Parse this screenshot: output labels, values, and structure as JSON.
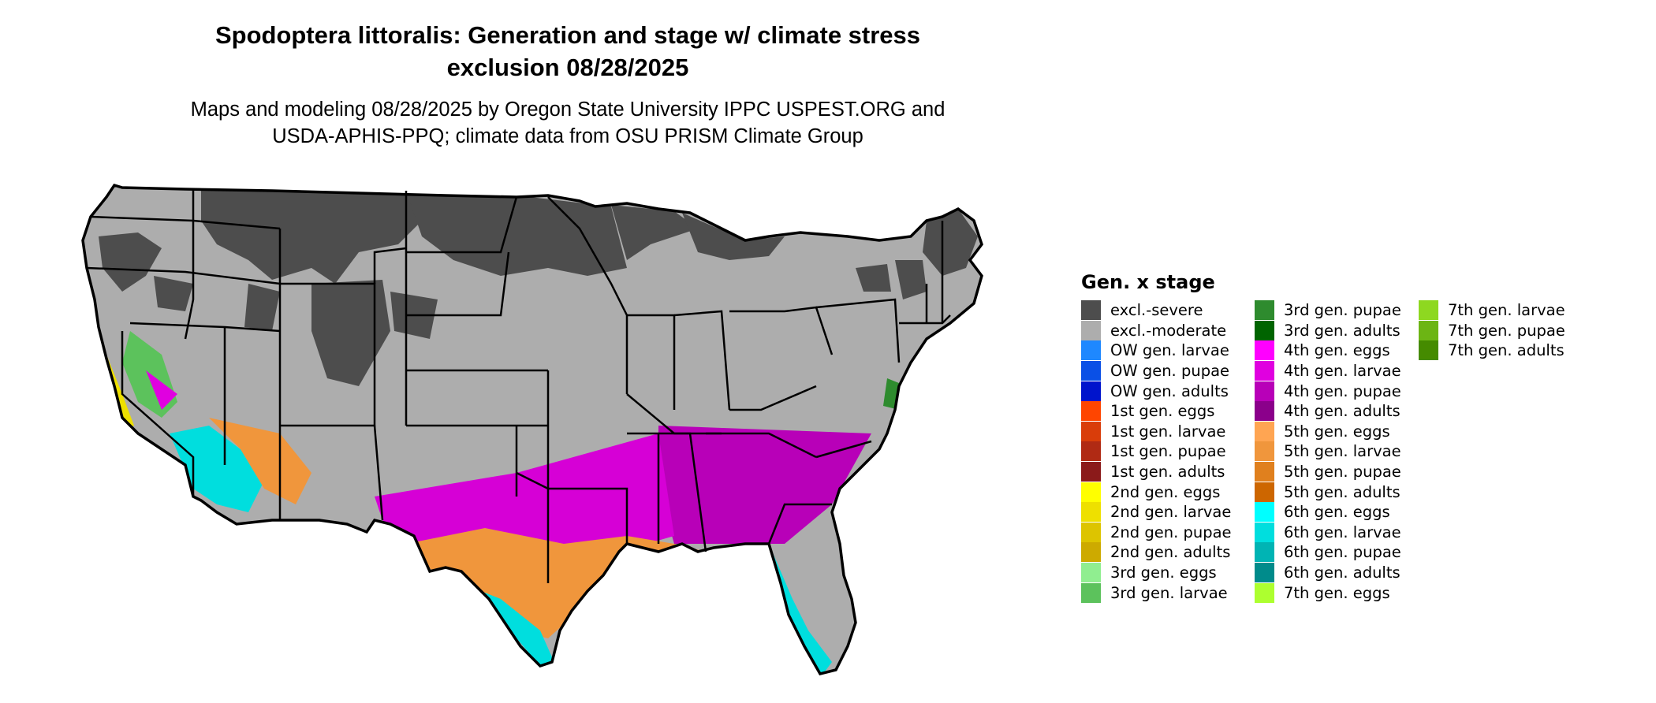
{
  "header": {
    "title_line1": "Spodoptera littoralis: Generation and stage w/ climate stress",
    "title_line2": "exclusion 08/28/2025",
    "subtitle_line1": "Maps and modeling 08/28/2025 by Oregon State University IPPC USPEST.ORG and",
    "subtitle_line2": "USDA-APHIS-PPQ; climate data from OSU PRISM Climate Group"
  },
  "legend": {
    "title": "Gen. x stage",
    "columns": [
      [
        {
          "label": "excl.-severe",
          "color": "#4d4d4d"
        },
        {
          "label": "excl.-moderate",
          "color": "#adadad"
        },
        {
          "label": "OW gen. larvae",
          "color": "#1e88ff"
        },
        {
          "label": "OW gen. pupae",
          "color": "#0a50e6"
        },
        {
          "label": "OW gen. adults",
          "color": "#0014cc"
        },
        {
          "label": "1st gen. eggs",
          "color": "#ff4500"
        },
        {
          "label": "1st gen. larvae",
          "color": "#d93d0a"
        },
        {
          "label": "1st gen. pupae",
          "color": "#b02a14"
        },
        {
          "label": "1st gen. adults",
          "color": "#8b1a1a"
        },
        {
          "label": "2nd gen. eggs",
          "color": "#ffff00"
        },
        {
          "label": "2nd gen. larvae",
          "color": "#eee000"
        },
        {
          "label": "2nd gen. pupae",
          "color": "#ddc400"
        },
        {
          "label": "2nd gen. adults",
          "color": "#cdaa00"
        },
        {
          "label": "3rd gen. eggs",
          "color": "#90ee90"
        },
        {
          "label": "3rd gen. larvae",
          "color": "#5cc25c"
        }
      ],
      [
        {
          "label": "3rd gen. pupae",
          "color": "#2e8b2e"
        },
        {
          "label": "3rd gen. adults",
          "color": "#006400"
        },
        {
          "label": "4th gen. eggs",
          "color": "#ff00ff"
        },
        {
          "label": "4th gen. larvae",
          "color": "#e000e0"
        },
        {
          "label": "4th gen. pupae",
          "color": "#b800b8"
        },
        {
          "label": "4th gen. adults",
          "color": "#8b008b"
        },
        {
          "label": "5th gen. eggs",
          "color": "#ffa552"
        },
        {
          "label": "5th gen. larvae",
          "color": "#f0963c"
        },
        {
          "label": "5th gen. pupae",
          "color": "#e0801e"
        },
        {
          "label": "5th gen. adults",
          "color": "#cd6600"
        },
        {
          "label": "6th gen. eggs",
          "color": "#00ffff"
        },
        {
          "label": "6th gen. larvae",
          "color": "#00dede"
        },
        {
          "label": "6th gen. pupae",
          "color": "#00b4b4"
        },
        {
          "label": "6th gen. adults",
          "color": "#008b8b"
        },
        {
          "label": "7th gen. eggs",
          "color": "#adff2f"
        }
      ],
      [
        {
          "label": "7th gen. larvae",
          "color": "#8ed820"
        },
        {
          "label": "7th gen. pupae",
          "color": "#6cb514"
        },
        {
          "label": "7th gen. adults",
          "color": "#458b00"
        }
      ]
    ]
  },
  "map": {
    "outline_color": "#000000",
    "severe_color": "#4d4d4d",
    "moderate_color": "#adadad"
  }
}
